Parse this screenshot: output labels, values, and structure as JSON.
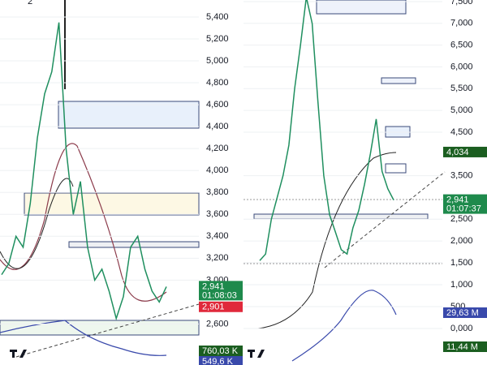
{
  "indicator_count": "2",
  "chart_data": [
    {
      "type": "line",
      "series": [
        {
          "name": null,
          "color": "#1f8f5f",
          "values": [
            3050,
            3150,
            3400,
            3300,
            3700,
            4300,
            4700,
            4900,
            5350,
            4200,
            3600,
            3900,
            3300,
            3000,
            3100,
            2900,
            2650,
            2850,
            3300,
            3400,
            3100,
            2900,
            2800,
            2941
          ]
        }
      ],
      "ylim": [
        2300,
        5555
      ],
      "yticks": [
        {
          "value": 5400,
          "label": "5,400"
        },
        {
          "value": 5200,
          "label": "5,200"
        },
        {
          "value": 5000,
          "label": "5,000"
        },
        {
          "value": 4800,
          "label": "4,800"
        },
        {
          "value": 4600,
          "label": "4,600"
        },
        {
          "value": 4400,
          "label": "4,400"
        },
        {
          "value": 4200,
          "label": "4,200"
        },
        {
          "value": 4000,
          "label": "4,000"
        },
        {
          "value": 3800,
          "label": "3,800"
        },
        {
          "value": 3600,
          "label": "3,600"
        },
        {
          "value": 3400,
          "label": "3,400"
        },
        {
          "value": 3200,
          "label": "3,200"
        },
        {
          "value": 3000,
          "label": "3,000"
        },
        {
          "value": 2600,
          "label": "2,600"
        }
      ],
      "price_labels": [
        {
          "value": 2941,
          "label": "2,941",
          "color": "#1e8a4c",
          "countdown": "01:08:03"
        },
        {
          "value": 2901,
          "label": "2,901",
          "color": "#e0293b"
        }
      ],
      "volume_labels": [
        {
          "label": "760,03 K",
          "color": "#1b5e20"
        },
        {
          "label": "549,6 K",
          "color": "#3949ab"
        }
      ]
    },
    {
      "type": "line",
      "series": [
        {
          "name": null,
          "color": "#1f8f5f",
          "values": [
            1550,
            1700,
            2500,
            3000,
            3500,
            4200,
            5500,
            6500,
            7600,
            7000,
            5200,
            3500,
            2600,
            2200,
            1800,
            1700,
            2300,
            2700,
            3300,
            4000,
            4800,
            3600,
            3200,
            2941
          ]
        }
      ],
      "ylim": [
        1200,
        7537
      ],
      "yticks": [
        {
          "value": 7500,
          "label": "7,500"
        },
        {
          "value": 7000,
          "label": "7,000"
        },
        {
          "value": 6500,
          "label": "6,500"
        },
        {
          "value": 6000,
          "label": "6,000"
        },
        {
          "value": 5500,
          "label": "5,500"
        },
        {
          "value": 5000,
          "label": "5,000"
        },
        {
          "value": 4500,
          "label": "4,500"
        },
        {
          "value": 3500,
          "label": "3,500"
        },
        {
          "value": 2500,
          "label": "2,500"
        },
        {
          "value": 2000,
          "label": "2,000"
        },
        {
          "value": 1500,
          "label": "1,500"
        }
      ],
      "y2lim": [
        -740,
        1944
      ],
      "y2ticks": [
        {
          "value": 1000,
          "label": "1,000"
        },
        500,
        {
          "value": 0,
          "label": "0,000"
        }
      ],
      "price_labels": [
        {
          "value": 4034,
          "label": "4,034",
          "color": "#1b5e20"
        },
        {
          "value": 2941,
          "label": "2,941",
          "color": "#1e8a4c",
          "countdown": "01:07:37"
        }
      ],
      "volume_labels": [
        {
          "label": "29,63 M",
          "color": "#3949ab"
        },
        {
          "label": "11,44 M",
          "color": "#1b5e20"
        }
      ]
    }
  ]
}
